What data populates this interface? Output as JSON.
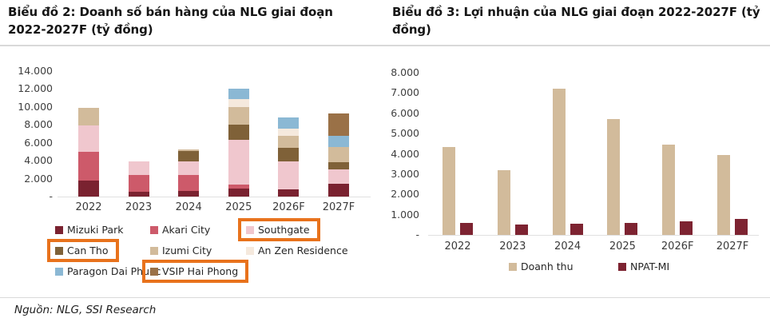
{
  "chart_data": [
    {
      "type": "bar",
      "variant": "stacked",
      "title": "Biểu đồ 2: Doanh số bán hàng của NLG giai đoạn 2022-2027F (tỷ đồng)",
      "categories": [
        "2022",
        "2023",
        "2024",
        "2025",
        "2026F",
        "2027F"
      ],
      "series": [
        {
          "name": "Mizuki Park",
          "color": "#7a2230",
          "values": [
            1800,
            500,
            600,
            900,
            800,
            1400
          ],
          "highlighted": false
        },
        {
          "name": "Akari City",
          "color": "#cd5a6a",
          "values": [
            3200,
            1900,
            1800,
            400,
            0,
            0
          ],
          "highlighted": false
        },
        {
          "name": "Southgate",
          "color": "#f0c7ce",
          "values": [
            2900,
            1500,
            1500,
            5000,
            3100,
            1600
          ],
          "highlighted": true
        },
        {
          "name": "Can Tho",
          "color": "#7f6138",
          "values": [
            0,
            0,
            1200,
            1700,
            1500,
            800
          ],
          "highlighted": true
        },
        {
          "name": "Izumi City",
          "color": "#d2bb9b",
          "values": [
            2000,
            0,
            200,
            2000,
            1400,
            1700
          ],
          "highlighted": false
        },
        {
          "name": "An Zen Residence",
          "color": "#f5e9dd",
          "values": [
            0,
            0,
            0,
            900,
            800,
            0
          ],
          "highlighted": false
        },
        {
          "name": "Paragon Dai Phuoc",
          "color": "#8bb8d4",
          "values": [
            0,
            0,
            0,
            1100,
            1200,
            1300
          ],
          "highlighted": false
        },
        {
          "name": "VSIP Hai Phong",
          "color": "#9a7147",
          "values": [
            0,
            0,
            0,
            0,
            0,
            2500
          ],
          "highlighted": true
        }
      ],
      "ylim": [
        0,
        14000
      ],
      "ytick_labels": [
        "14.000",
        "12.000",
        "10.000",
        "8.000",
        "6.000",
        "4.000",
        "2.000",
        "-"
      ],
      "grid": false,
      "legend_position": "bottom"
    },
    {
      "type": "bar",
      "variant": "grouped",
      "title": "Biểu đồ 3: Lợi nhuận của NLG giai đoạn 2022-2027F (tỷ đồng)",
      "categories": [
        "2022",
        "2023",
        "2024",
        "2025",
        "2026F",
        "2027F"
      ],
      "series": [
        {
          "name": "Doanh thu",
          "color": "#d2bb9b",
          "values": [
            4350,
            3200,
            7200,
            5700,
            4450,
            3950
          ],
          "highlighted": false
        },
        {
          "name": "NPAT-MI",
          "color": "#7d2331",
          "values": [
            580,
            500,
            550,
            600,
            680,
            800
          ],
          "highlighted": false
        }
      ],
      "ylim": [
        0,
        8000
      ],
      "ytick_labels": [
        "8.000",
        "7.000",
        "6.000",
        "5.000",
        "4.000",
        "3.000",
        "2.000",
        "1.000",
        "-"
      ],
      "grid": false,
      "legend_position": "bottom"
    }
  ],
  "annotations": {
    "highlight_color": "#e8721c",
    "highlighted_legend_entries": [
      "Southgate",
      "Can Tho",
      "VSIP Hai Phong"
    ]
  },
  "footer": {
    "source": "Nguồn: NLG, SSI Research"
  }
}
